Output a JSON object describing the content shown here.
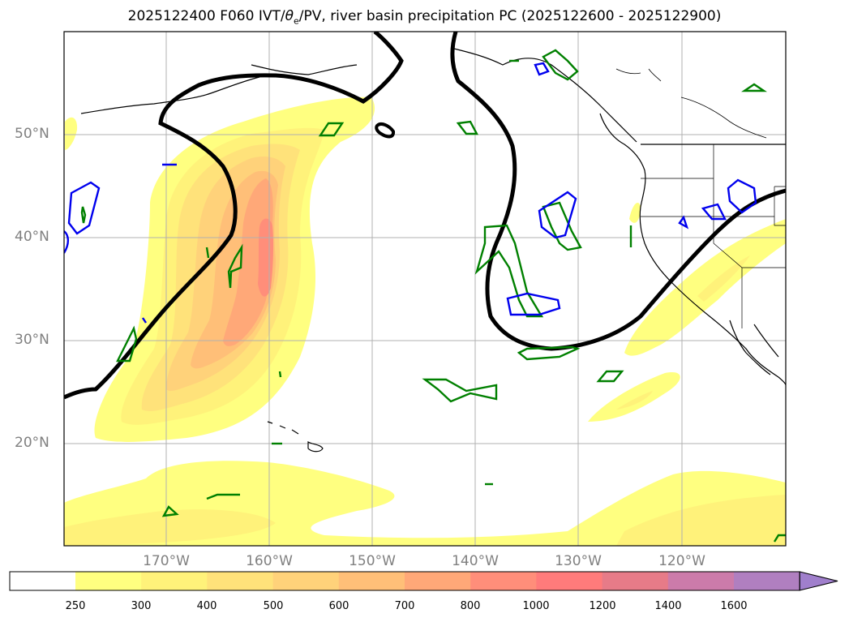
{
  "title": {
    "prefix": "2025122400 F060 IVT/",
    "theta": "θ",
    "theta_sub": "e",
    "suffix": "/PV, river basin precipitation PC (2025122600 - 2025122900)"
  },
  "axes": {
    "lat_labels": [
      "50°N",
      "40°N",
      "30°N",
      "20°N"
    ],
    "lon_labels": [
      "170°W",
      "160°W",
      "150°W",
      "140°W",
      "130°W",
      "120°W"
    ]
  },
  "colorbar": {
    "levels": [
      "250",
      "300",
      "400",
      "500",
      "600",
      "700",
      "800",
      "1000",
      "1200",
      "1400",
      "1600"
    ],
    "colors": [
      "#ffffff",
      "#ffff80",
      "#fff27a",
      "#ffe27a",
      "#ffd27a",
      "#ffbf78",
      "#ffa878",
      "#ff8e7a",
      "#ff7b7b",
      "#e77b88",
      "#cc7baa",
      "#b07fc0",
      "#a07fcc"
    ]
  },
  "colors": {
    "ivt_light": "#ffff80",
    "ivt_levels": [
      "#fff27a",
      "#ffe27a",
      "#ffd27a",
      "#ffbf78",
      "#ffa878",
      "#ff8e7a"
    ],
    "theta_contour": "#000000",
    "pv_contour_green": "#008000",
    "pv_contour_blue": "#0000ee",
    "gridline": "#b0b0b0"
  }
}
